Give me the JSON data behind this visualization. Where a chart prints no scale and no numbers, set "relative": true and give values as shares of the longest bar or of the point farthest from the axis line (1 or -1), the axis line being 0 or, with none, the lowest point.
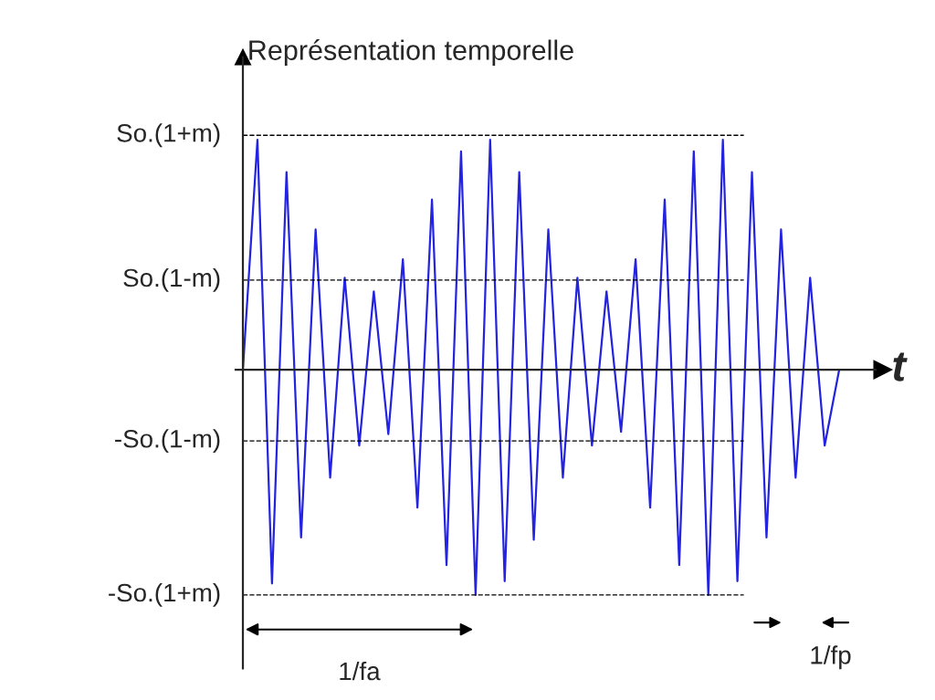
{
  "chart_data": {
    "type": "line",
    "title": "Représentation temporelle",
    "relative": true,
    "xlabel": "t",
    "categories": [
      null,
      null,
      null,
      null,
      null,
      null,
      null,
      null,
      null,
      null,
      null,
      null,
      null,
      null,
      null,
      null,
      null,
      null,
      null,
      null,
      null,
      null,
      null,
      null,
      null,
      null,
      null,
      null,
      null,
      null,
      null,
      null,
      null,
      null,
      null,
      null,
      null,
      null,
      null,
      null,
      null,
      null
    ],
    "series": [
      {
        "color": "#2323e0",
        "values": [
          0,
          1.0,
          -0.93,
          0.86,
          -0.73,
          0.61,
          -0.47,
          0.4,
          -0.33,
          0.34,
          -0.28,
          0.48,
          -0.6,
          0.74,
          -0.85,
          0.95,
          -0.98,
          1.0,
          -0.92,
          0.86,
          -0.74,
          0.61,
          -0.47,
          0.4,
          -0.33,
          0.34,
          -0.27,
          0.48,
          -0.6,
          0.74,
          -0.85,
          0.95,
          -0.98,
          1.0,
          -0.92,
          0.86,
          -0.73,
          0.61,
          -0.47,
          0.4,
          -0.33,
          0
        ]
      }
    ],
    "ref_lines": [
      {
        "axis": "y",
        "value": 1.02,
        "label": "So.(1+m)",
        "line_style": "dashed",
        "color": "#000000"
      },
      {
        "axis": "y",
        "value": 0.39,
        "label": "So.(1-m)",
        "line_style": "dashed",
        "color": "#000000"
      },
      {
        "axis": "y",
        "value": -0.31,
        "label": "-So.(1-m)",
        "line_style": "dashed",
        "color": "#000000"
      },
      {
        "axis": "y",
        "value": -0.98,
        "label": "-So.(1+m)",
        "line_style": "dashed",
        "color": "#000000"
      }
    ],
    "annotations": [
      "1/fa",
      "1/fp"
    ],
    "legend": false,
    "marker": "none",
    "line_style": "solid"
  }
}
